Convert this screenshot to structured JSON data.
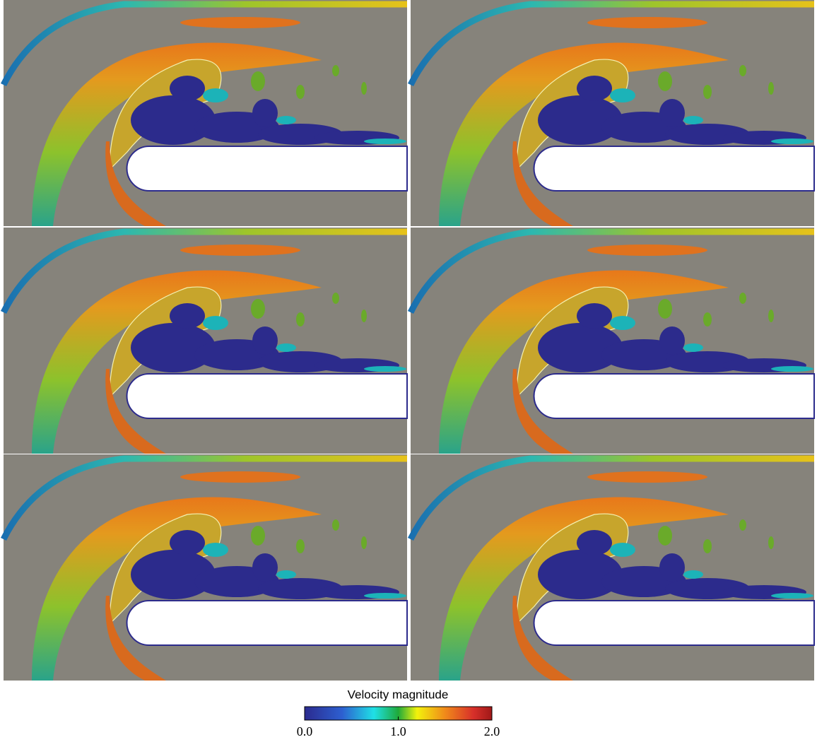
{
  "colorbar": {
    "title": "Velocity magnitude",
    "range": [
      0,
      2
    ],
    "ticks": [
      {
        "value": 0,
        "label": "0.0"
      },
      {
        "value": 1,
        "label": "1.0"
      },
      {
        "value": 2,
        "label": "2.0"
      }
    ]
  }
}
